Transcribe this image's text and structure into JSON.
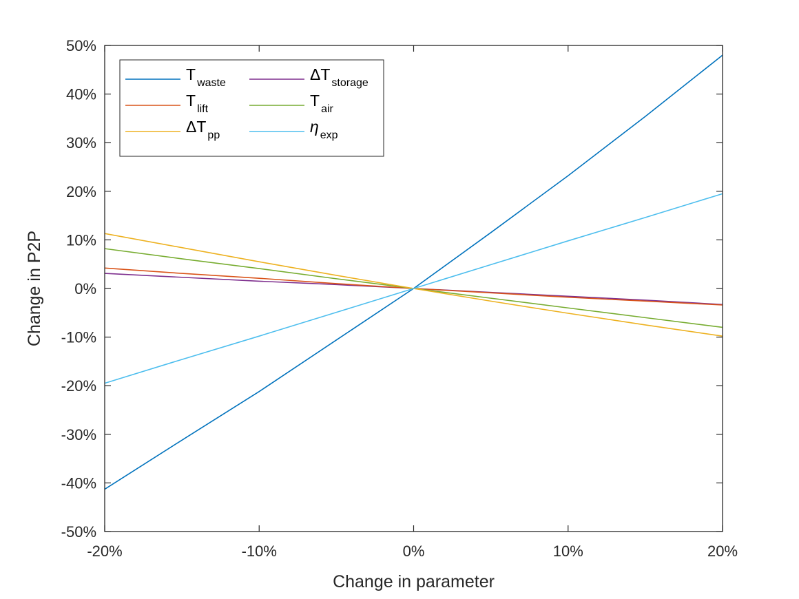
{
  "chart_data": {
    "type": "line",
    "title": "",
    "xlabel": "Change in parameter",
    "ylabel": "Change in P2P",
    "xlim": [
      -20,
      20
    ],
    "ylim": [
      -50,
      50
    ],
    "xticks": [
      -20,
      -10,
      0,
      10,
      20
    ],
    "xtick_labels": [
      "-20%",
      "-10%",
      "0%",
      "10%",
      "20%"
    ],
    "yticks": [
      -50,
      -40,
      -30,
      -20,
      -10,
      0,
      10,
      20,
      30,
      40,
      50
    ],
    "ytick_labels": [
      "-50%",
      "-40%",
      "-30%",
      "-20%",
      "-10%",
      "0%",
      "10%",
      "20%",
      "30%",
      "40%",
      "50%"
    ],
    "grid": false,
    "legend_position": "top-left",
    "x": [
      -20,
      -15,
      -10,
      -5,
      0,
      5,
      10,
      15,
      20
    ],
    "series": [
      {
        "name": "T",
        "subscript": "waste",
        "color": "#0072BD",
        "values": [
          -41.3,
          -31.2,
          -21.2,
          -10.6,
          0,
          11.5,
          23.2,
          35.4,
          48.0
        ]
      },
      {
        "name": "ΔT",
        "subscript": "storage",
        "color": "#7E2F8E",
        "values": [
          3.1,
          2.3,
          1.5,
          0.8,
          0,
          -0.8,
          -1.6,
          -2.4,
          -3.3
        ]
      },
      {
        "name": "T",
        "subscript": "lift",
        "color": "#D95319",
        "values": [
          4.2,
          3.1,
          2.1,
          1.0,
          0,
          -0.9,
          -1.8,
          -2.6,
          -3.4
        ]
      },
      {
        "name": "T",
        "subscript": "air",
        "color": "#77AC30",
        "values": [
          8.2,
          6.1,
          4.1,
          2.0,
          0,
          -2.0,
          -4.0,
          -6.0,
          -8.0
        ]
      },
      {
        "name": "ΔT",
        "subscript": "pp",
        "color": "#EDB120",
        "values": [
          11.3,
          8.4,
          5.5,
          2.7,
          0,
          -2.6,
          -5.1,
          -7.5,
          -9.8
        ]
      },
      {
        "name": "η",
        "subscript": "exp",
        "color": "#4DBEEE",
        "values": [
          -19.5,
          -14.6,
          -9.8,
          -4.9,
          0,
          4.9,
          9.8,
          14.6,
          19.5
        ]
      }
    ]
  }
}
